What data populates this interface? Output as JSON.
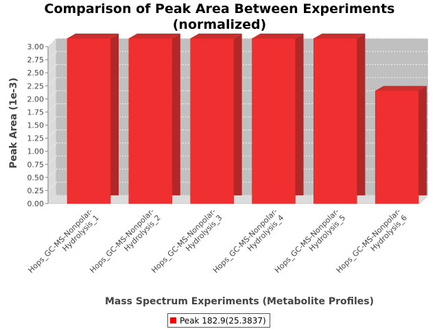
{
  "chart_data": {
    "type": "bar",
    "title_line1": "Comparison of Peak Area Between Experiments",
    "title_line2": "(normalized)",
    "xlabel": "Mass Spectrum Experiments (Metabolite Profiles)",
    "ylabel": "Peak Area (1e-3)",
    "categories": [
      [
        "Hops_GC-MS-Nonpolar-",
        "Hydrolysis_1"
      ],
      [
        "Hops_GC-MS-Nonpolar-",
        "Hydrolysis_2"
      ],
      [
        "Hops_GC-MS-Nonpolar-",
        "Hydrolysis_3"
      ],
      [
        "Hops_GC-MS-Nonpolar-",
        "Hydrolysis_4"
      ],
      [
        "Hops_GC-MS-Nonpolar-",
        "Hydrolysis_5"
      ],
      [
        "Hops_GC-MS-Nonpolar-",
        "Hydrolysis_6"
      ]
    ],
    "series": [
      {
        "name": "Peak 182.9(25.3837)",
        "values": [
          3.0,
          3.0,
          3.0,
          3.0,
          3.0,
          2.0
        ],
        "color": "#ff0000"
      }
    ],
    "ylim": [
      0,
      3.0
    ],
    "yticks": [
      "0.00",
      "0.25",
      "0.50",
      "0.75",
      "1.00",
      "1.25",
      "1.50",
      "1.75",
      "2.00",
      "2.25",
      "2.50",
      "2.75",
      "3.00"
    ],
    "grid": true,
    "legend_position": "bottom",
    "plot_background": "#c0c0c0",
    "wall_color": "#dcdcdc"
  }
}
